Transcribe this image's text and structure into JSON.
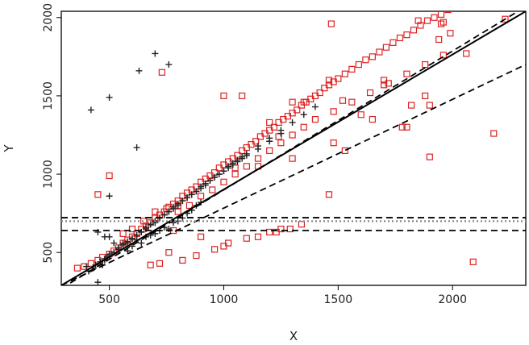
{
  "chart_data": {
    "type": "scatter",
    "title": "",
    "xlabel": "X",
    "ylabel": "Y",
    "xlim": [
      290,
      2320
    ],
    "ylim": [
      290,
      2040
    ],
    "xticks": [
      500,
      1000,
      1500,
      2000
    ],
    "yticks": [
      500,
      1000,
      1500,
      2000
    ],
    "xtick_labels": [
      "500",
      "1000",
      "1500",
      "2000"
    ],
    "ytick_labels": [
      "500",
      "1000",
      "1500",
      "2000"
    ],
    "grid": false,
    "legend": "none",
    "colors": {
      "red_squares": "#dd2222",
      "black_plus": "#222222",
      "lines": "#000000",
      "dotted": "#888888"
    },
    "series": [
      {
        "marker": "square",
        "color": "#dd2222",
        "x": [
          360,
          390,
          420,
          450,
          470,
          500,
          520,
          540,
          560,
          580,
          600,
          620,
          640,
          660,
          680,
          700,
          720,
          740,
          760,
          780,
          800,
          820,
          840,
          860,
          880,
          900,
          920,
          940,
          960,
          980,
          1000,
          1020,
          1040,
          1060,
          1080,
          1100,
          1120,
          1140,
          1160,
          1180,
          1200,
          1220,
          1240,
          1260,
          1280,
          1300,
          1320,
          1340,
          1360,
          1380,
          1400,
          1420,
          1440,
          1460,
          1480,
          1500,
          1530,
          1560,
          1590,
          1620,
          1650,
          1680,
          1710,
          1740,
          1770,
          1800,
          1830,
          1860,
          1890,
          1920,
          1950,
          1980,
          730,
          500,
          450,
          700,
          750,
          800,
          560,
          600,
          650,
          700,
          800,
          850,
          900,
          950,
          1000,
          1050,
          1100,
          1150,
          1200,
          1250,
          1300,
          1350,
          1400,
          1480,
          1560,
          1640,
          1720,
          1800,
          1880,
          1960,
          1470,
          1960,
          1950,
          1080,
          1000,
          1200,
          1240,
          1300,
          1350,
          1460,
          1520,
          1650,
          1700,
          1780,
          1820,
          1850,
          1880,
          1900,
          1940,
          1990,
          2060,
          2090,
          2180,
          2230,
          1050,
          1150,
          1300,
          1460,
          1530,
          1800,
          1900,
          1480,
          1600,
          1700,
          780,
          900,
          1000,
          1100,
          1200,
          1250,
          680,
          720,
          760,
          820,
          880,
          960,
          1020,
          1150,
          1230,
          1290,
          1340
        ],
        "y": [
          400,
          410,
          430,
          450,
          470,
          490,
          510,
          530,
          560,
          580,
          600,
          620,
          650,
          670,
          690,
          720,
          740,
          760,
          790,
          810,
          830,
          860,
          880,
          900,
          920,
          950,
          970,
          990,
          1010,
          1040,
          1060,
          1080,
          1100,
          1120,
          1150,
          1170,
          1190,
          1210,
          1240,
          1260,
          1280,
          1300,
          1330,
          1350,
          1370,
          1390,
          1410,
          1440,
          1460,
          1480,
          1500,
          1520,
          1550,
          1570,
          1590,
          1610,
          1640,
          1670,
          1700,
          1730,
          1750,
          1780,
          1810,
          1840,
          1870,
          1890,
          1920,
          1950,
          1980,
          2000,
          2020,
          2050,
          1650,
          990,
          870,
          760,
          780,
          800,
          620,
          650,
          700,
          720,
          760,
          800,
          860,
          900,
          950,
          1000,
          1050,
          1100,
          1150,
          1200,
          1250,
          1300,
          1350,
          1400,
          1460,
          1520,
          1580,
          1640,
          1700,
          1760,
          1960,
          1970,
          1960,
          1500,
          1500,
          1330,
          1240,
          1460,
          1460,
          1600,
          1470,
          1350,
          1570,
          1300,
          1440,
          1980,
          1500,
          1440,
          1860,
          1900,
          1770,
          440,
          1260,
          1990,
          1040,
          1050,
          1100,
          870,
          1150,
          1300,
          1110,
          1200,
          1380,
          1600,
          640,
          600,
          540,
          590,
          630,
          650,
          420,
          430,
          500,
          450,
          480,
          520,
          560,
          600,
          630,
          650,
          680
        ]
      },
      {
        "marker": "plus",
        "color": "#222222",
        "x": [
          420,
          500,
          630,
          700,
          760,
          620,
          500,
          450,
          470,
          480,
          490,
          500,
          520,
          540,
          560,
          580,
          600,
          620,
          640,
          660,
          680,
          700,
          720,
          740,
          760,
          780,
          800,
          820,
          840,
          860,
          880,
          900,
          920,
          940,
          960,
          980,
          1000,
          1020,
          1040,
          1060,
          1080,
          1100,
          1150,
          1200,
          1250,
          1300,
          1350,
          1400,
          400,
          410,
          430,
          440,
          460,
          480,
          500,
          520,
          540,
          560,
          580,
          600,
          620,
          640,
          660,
          680,
          700,
          720,
          740,
          760,
          780,
          800,
          820,
          840,
          860,
          880,
          900,
          920,
          940,
          960,
          980,
          1000,
          1020,
          1040,
          1060,
          1080,
          1100,
          1150,
          1200,
          1250,
          450,
          480,
          500,
          520,
          540,
          560,
          580,
          600,
          620,
          640,
          660,
          680,
          700,
          720,
          740,
          760,
          780,
          800,
          820,
          840,
          860,
          880,
          900
        ],
        "y": [
          1410,
          1490,
          1660,
          1770,
          1700,
          1170,
          860,
          310,
          420,
          450,
          470,
          490,
          500,
          520,
          550,
          570,
          590,
          610,
          630,
          650,
          680,
          700,
          720,
          740,
          760,
          790,
          810,
          830,
          850,
          870,
          890,
          920,
          940,
          960,
          980,
          1000,
          1020,
          1050,
          1070,
          1090,
          1110,
          1130,
          1180,
          1230,
          1280,
          1330,
          1380,
          1430,
          410,
          380,
          400,
          420,
          440,
          460,
          480,
          500,
          530,
          550,
          560,
          590,
          610,
          630,
          660,
          680,
          690,
          720,
          740,
          760,
          780,
          800,
          830,
          850,
          870,
          890,
          910,
          930,
          960,
          980,
          1000,
          1020,
          1040,
          1060,
          1080,
          1100,
          1120,
          1160,
          1210,
          1260,
          630,
          600,
          600,
          560,
          520,
          560,
          510,
          540,
          580,
          560,
          600,
          610,
          620,
          640,
          660,
          650,
          690,
          700,
          720,
          750,
          770,
          800,
          820
        ]
      }
    ],
    "lines": [
      {
        "style": "solid",
        "color": "#000000",
        "from": [
          290,
          290
        ],
        "to": [
          2320,
          2040
        ]
      },
      {
        "style": "dashed",
        "color": "#000000",
        "from": [
          290,
          270
        ],
        "to": [
          2320,
          2070
        ]
      },
      {
        "style": "dashed",
        "color": "#000000",
        "from": [
          290,
          290
        ],
        "to": [
          2320,
          1700
        ]
      },
      {
        "style": "dashed",
        "color": "#000000",
        "horizontal_y": 640
      },
      {
        "style": "dashed",
        "color": "#000000",
        "horizontal_y": 722
      },
      {
        "style": "dotted",
        "color": "#888888",
        "horizontal_y": 700
      }
    ]
  }
}
